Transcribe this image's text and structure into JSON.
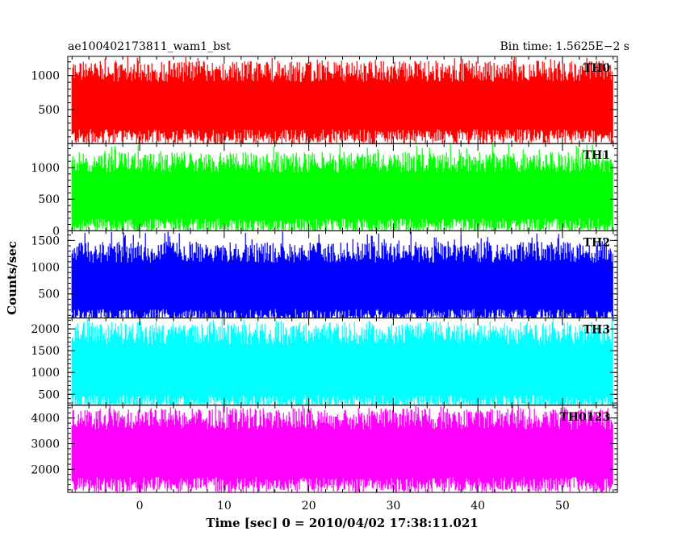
{
  "header": {
    "left_title": "ae100402173811_wam1_bst",
    "right_title": "Bin time: 1.5625E−2 s"
  },
  "chart_data": {
    "type": "line",
    "xlabel": "Time [sec] 0 = 2010/04/02 17:38:11.021",
    "ylabel": "Counts/sec",
    "xlim": [
      -8.5,
      56.5
    ],
    "data_x_range": [
      -8,
      56
    ],
    "x_ticks": [
      0,
      10,
      20,
      30,
      40,
      50
    ],
    "panels": [
      {
        "name": "TH0",
        "color": "#ff0000",
        "ylim": [
          0,
          1280
        ],
        "y_ticks": [
          500,
          1000
        ],
        "band": [
          100,
          1000
        ],
        "peak": 1280
      },
      {
        "name": "TH1",
        "color": "#00ff00",
        "ylim": [
          0,
          1380
        ],
        "y_ticks": [
          0,
          500,
          1000
        ],
        "band": [
          80,
          1020
        ],
        "peak": 1380
      },
      {
        "name": "TH2",
        "color": "#0000ff",
        "ylim": [
          50,
          1680
        ],
        "y_ticks": [
          500,
          1000,
          1500
        ],
        "band": [
          80,
          1200
        ],
        "peak": 1680
      },
      {
        "name": "TH3",
        "color": "#00ffff",
        "ylim": [
          250,
          2250
        ],
        "y_ticks": [
          500,
          1000,
          1500,
          2000
        ],
        "band": [
          300,
          1800
        ],
        "peak": 2250
      },
      {
        "name": "TH0123",
        "color": "#ff00ff",
        "ylim": [
          1100,
          4500
        ],
        "y_ticks": [
          2000,
          3000,
          4000
        ],
        "band": [
          1400,
          3800
        ],
        "peak": 4500
      }
    ]
  }
}
